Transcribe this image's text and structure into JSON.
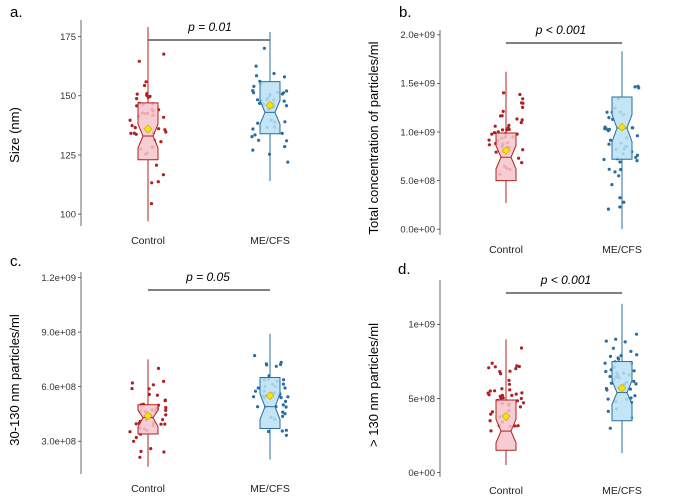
{
  "figure": {
    "colors": {
      "control_fill": "#f6c4cc",
      "control_line": "#b12020",
      "mecfs_fill": "#b9e0f4",
      "mecfs_line": "#2a6e9e",
      "mean_marker": "#f4e20a"
    }
  },
  "chart_data": [
    {
      "type": "box",
      "panel_label": "a.",
      "ylabel": "Size (nm)",
      "categories": [
        "Control",
        "ME/CFS"
      ],
      "yticks": [
        100,
        125,
        150,
        175
      ],
      "ytick_labels": [
        "100",
        "125",
        "150",
        "175"
      ],
      "ylim": [
        95,
        182
      ],
      "p_value_label": "p = 0.01",
      "series": [
        {
          "name": "Control",
          "whisker_low": 97,
          "q1": 123,
          "median": 133,
          "q3": 147,
          "whisker_high": 179,
          "notch": [
            128,
            138
          ],
          "mean": 136
        },
        {
          "name": "ME/CFS",
          "whisker_low": 114,
          "q1": 134,
          "median": 143,
          "q3": 156,
          "whisker_high": 177,
          "notch": [
            138,
            148
          ],
          "mean": 146
        }
      ]
    },
    {
      "type": "box",
      "panel_label": "b.",
      "ylabel": "Total concentration of particles/ml",
      "categories": [
        "Control",
        "ME/CFS"
      ],
      "yticks": [
        0,
        500000000,
        1000000000,
        1500000000,
        2000000000
      ],
      "ytick_labels": [
        "0.0e+00",
        "5.0e+08",
        "1.0e+09",
        "1.5e+09",
        "2.0e+09"
      ],
      "ylim": [
        -60000000,
        2050000000
      ],
      "p_value_label": "p < 0.001",
      "series": [
        {
          "name": "Control",
          "whisker_low": 270000000,
          "q1": 500000000,
          "median": 740000000,
          "q3": 990000000,
          "whisker_high": 1620000000,
          "notch": [
            620000000,
            860000000
          ],
          "mean": 810000000
        },
        {
          "name": "ME/CFS",
          "whisker_low": 0,
          "q1": 720000000,
          "median": 1040000000,
          "q3": 1360000000,
          "whisker_high": 1830000000,
          "notch": [
            900000000,
            1180000000
          ],
          "mean": 1050000000
        }
      ]
    },
    {
      "type": "box",
      "panel_label": "c.",
      "ylabel": "30-130 nm particles/ml",
      "categories": [
        "Control",
        "ME/CFS"
      ],
      "yticks": [
        300000000,
        600000000,
        900000000,
        1200000000
      ],
      "ytick_labels": [
        "3.0e+08",
        "6.0e+08",
        "9.0e+08",
        "1.2e+09"
      ],
      "ylim": [
        120000000,
        1230000000
      ],
      "p_value_label": "p = 0.05",
      "series": [
        {
          "name": "Control",
          "whisker_low": 160000000,
          "q1": 340000000,
          "median": 430000000,
          "q3": 500000000,
          "whisker_high": 750000000,
          "notch": [
            380000000,
            470000000
          ],
          "mean": 440000000
        },
        {
          "name": "ME/CFS",
          "whisker_low": 200000000,
          "q1": 370000000,
          "median": 490000000,
          "q3": 650000000,
          "whisker_high": 890000000,
          "notch": [
            420000000,
            560000000
          ],
          "mean": 550000000
        }
      ]
    },
    {
      "type": "box",
      "panel_label": "d.",
      "ylabel": "> 130 nm particles/ml",
      "categories": [
        "Control",
        "ME/CFS"
      ],
      "yticks": [
        0,
        500000000,
        1000000000
      ],
      "ytick_labels": [
        "0e+00",
        "5e+08",
        "1e+09"
      ],
      "ylim": [
        -30000000,
        1300000000
      ],
      "p_value_label": "p  < 0.001",
      "series": [
        {
          "name": "Control",
          "whisker_low": 50000000,
          "q1": 150000000,
          "median": 280000000,
          "q3": 490000000,
          "whisker_high": 900000000,
          "notch": [
            200000000,
            360000000
          ],
          "mean": 380000000
        },
        {
          "name": "ME/CFS",
          "whisker_low": 130000000,
          "q1": 350000000,
          "median": 540000000,
          "q3": 750000000,
          "whisker_high": 1140000000,
          "notch": [
            460000000,
            620000000
          ],
          "mean": 570000000
        }
      ]
    }
  ]
}
